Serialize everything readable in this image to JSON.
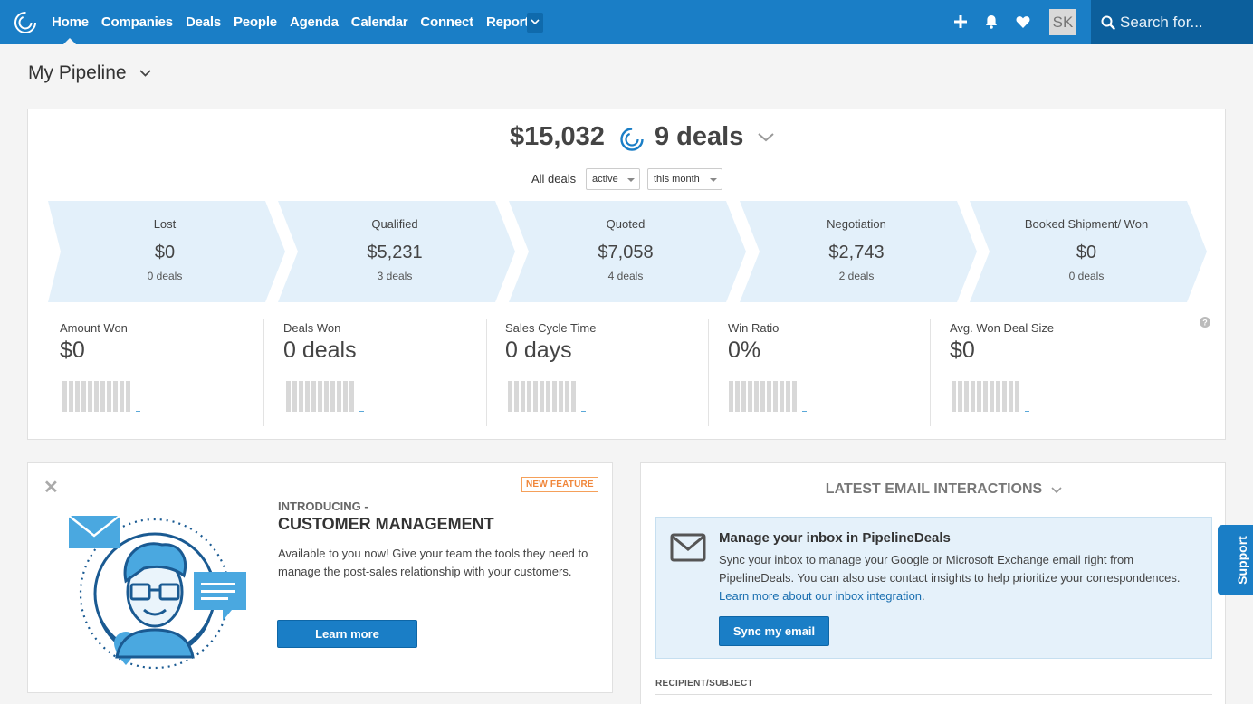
{
  "nav": {
    "items": [
      {
        "label": "Home",
        "active": true
      },
      {
        "label": "Companies"
      },
      {
        "label": "Deals"
      },
      {
        "label": "People"
      },
      {
        "label": "Agenda"
      },
      {
        "label": "Calendar"
      },
      {
        "label": "Connect"
      },
      {
        "label": "Reports"
      }
    ],
    "icons": [
      "plus-icon",
      "bell-icon",
      "heart-icon"
    ],
    "avatar": "SK",
    "search_placeholder": "Search for..."
  },
  "page": {
    "title": "My Pipeline"
  },
  "pipeline": {
    "total_amount": "$15,032",
    "total_deals": "9 deals",
    "filter_label": "All deals",
    "status_filter": "active",
    "period_filter": "this month",
    "stages": [
      {
        "name": "Lost",
        "amount": "$0",
        "deals": "0 deals"
      },
      {
        "name": "Qualified",
        "amount": "$5,231",
        "deals": "3 deals"
      },
      {
        "name": "Quoted",
        "amount": "$7,058",
        "deals": "4 deals"
      },
      {
        "name": "Negotiation",
        "amount": "$2,743",
        "deals": "2 deals"
      },
      {
        "name": "Booked Shipment/ Won",
        "amount": "$0",
        "deals": "0 deals"
      }
    ],
    "metrics": [
      {
        "label": "Amount Won",
        "value": "$0"
      },
      {
        "label": "Deals Won",
        "value": "0 deals"
      },
      {
        "label": "Sales Cycle Time",
        "value": "0 days"
      },
      {
        "label": "Win Ratio",
        "value": "0%"
      },
      {
        "label": "Avg. Won Deal Size",
        "value": "$0"
      }
    ]
  },
  "feature": {
    "badge": "NEW FEATURE",
    "kicker": "INTRODUCING -",
    "title": "CUSTOMER MANAGEMENT",
    "description": "Available to you now! Give your team the tools they need to manage the post-sales relationship with your customers.",
    "button": "Learn more"
  },
  "email": {
    "heading": "LATEST EMAIL INTERACTIONS",
    "inbox_title": "Manage your inbox in PipelineDeals",
    "inbox_text": "Sync your inbox to manage your Google or Microsoft Exchange email right from PipelineDeals. You can also use contact insights to help prioritize your correspondences.",
    "inbox_link": "Learn more about our inbox integration",
    "inbox_link_suffix": ".",
    "sync_button": "Sync my email",
    "column_header": "RECIPIENT/SUBJECT"
  },
  "support_label": "Support",
  "colors": {
    "brand": "#1a7ec6",
    "stage_fill": "#e3f0fa",
    "badge": "#f0863a"
  }
}
